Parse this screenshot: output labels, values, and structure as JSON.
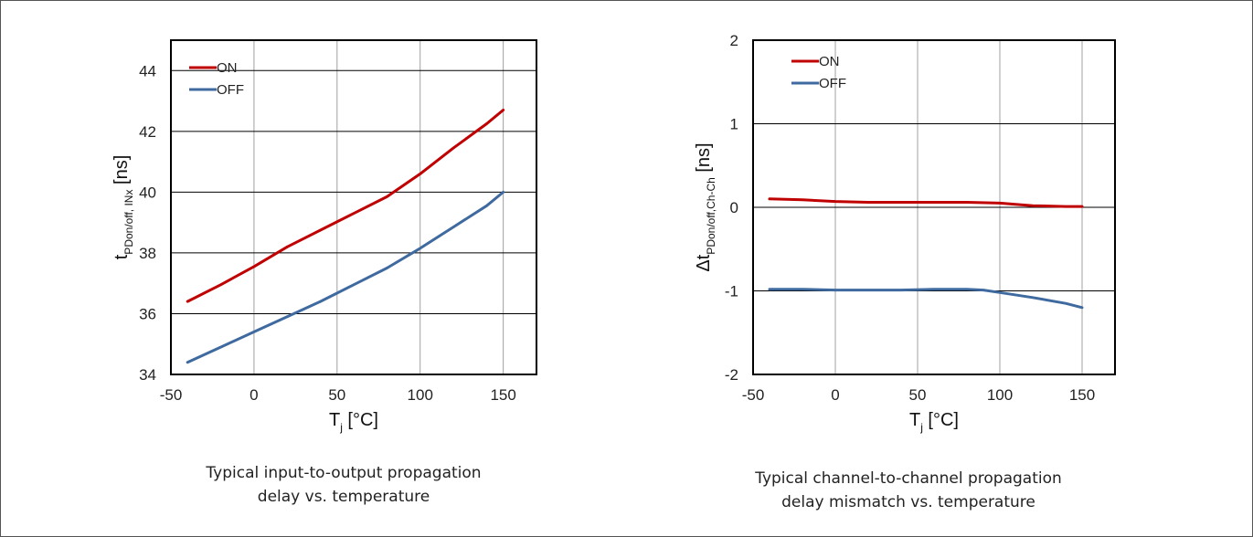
{
  "colors": {
    "on": "#c00000",
    "off": "#3f6aa0",
    "grid": "#a0a0a0",
    "frame": "#000000"
  },
  "chart_data": [
    {
      "type": "line",
      "title": "",
      "caption_lines": [
        "Typical input-to-output propagation",
        "delay vs. temperature"
      ],
      "xlabel": {
        "main": "T",
        "sub": "j",
        "unit": " [°C]"
      },
      "ylabel": {
        "main": "t",
        "sub": "PDon/off, INx",
        "unit": " [ns]"
      },
      "xlim": [
        -50,
        170
      ],
      "ylim": [
        34,
        45
      ],
      "xticks": [
        -50,
        0,
        50,
        100,
        150
      ],
      "yticks": [
        34,
        36,
        38,
        40,
        42,
        44
      ],
      "grid": true,
      "legend_position": "top-left",
      "series": [
        {
          "name": "ON",
          "color": "#c00000",
          "x": [
            -40,
            -20,
            0,
            20,
            40,
            60,
            80,
            100,
            120,
            140,
            150
          ],
          "y": [
            36.4,
            36.95,
            37.55,
            38.2,
            38.75,
            39.3,
            39.85,
            40.6,
            41.45,
            42.25,
            42.7
          ]
        },
        {
          "name": "OFF",
          "color": "#3f6aa0",
          "x": [
            -40,
            -20,
            0,
            20,
            40,
            60,
            80,
            100,
            120,
            140,
            150
          ],
          "y": [
            34.4,
            34.9,
            35.4,
            35.9,
            36.4,
            36.95,
            37.5,
            38.15,
            38.85,
            39.55,
            40.0
          ]
        }
      ]
    },
    {
      "type": "line",
      "title": "",
      "caption_lines": [
        "Typical channel-to-channel propagation",
        "delay mismatch vs. temperature"
      ],
      "xlabel": {
        "main": "T",
        "sub": "j",
        "unit": " [°C]"
      },
      "ylabel": {
        "main": "Δt",
        "sub": "PDon/off,Ch-Ch",
        "unit": " [ns]"
      },
      "xlim": [
        -50,
        170
      ],
      "ylim": [
        -2,
        2
      ],
      "xticks": [
        -50,
        0,
        50,
        100,
        150
      ],
      "yticks": [
        -2,
        -1,
        0,
        1,
        2
      ],
      "grid": true,
      "legend_position": "top-left",
      "series": [
        {
          "name": "ON",
          "color": "#c00000",
          "x": [
            -40,
            -20,
            0,
            20,
            40,
            60,
            80,
            100,
            120,
            140,
            150
          ],
          "y": [
            0.1,
            0.09,
            0.07,
            0.06,
            0.06,
            0.06,
            0.06,
            0.05,
            0.02,
            0.01,
            0.01
          ]
        },
        {
          "name": "OFF",
          "color": "#3f6aa0",
          "x": [
            -40,
            -20,
            0,
            20,
            40,
            60,
            80,
            90,
            100,
            120,
            140,
            150
          ],
          "y": [
            -0.98,
            -0.98,
            -0.99,
            -0.99,
            -0.99,
            -0.98,
            -0.98,
            -0.99,
            -1.02,
            -1.08,
            -1.15,
            -1.2
          ]
        }
      ]
    }
  ]
}
